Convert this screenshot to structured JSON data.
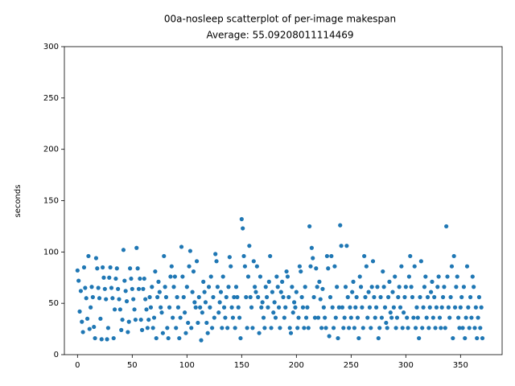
{
  "chart_data": {
    "type": "scatter",
    "title": "00a-nosleep scatterplot of per-image makespan",
    "subtitle": "Average: 55.09208011114469",
    "ylabel": "seconds",
    "xlim": [
      -12,
      388
    ],
    "ylim": [
      0,
      300
    ],
    "xticks": [
      0,
      50,
      100,
      150,
      200,
      250,
      300,
      350
    ],
    "yticks": [
      0,
      50,
      100,
      150,
      200,
      250,
      300
    ],
    "series": [
      {
        "color": "#1f77b4",
        "x": [
          0,
          1,
          2,
          3,
          4,
          5,
          6,
          7,
          8,
          9,
          10,
          11,
          12,
          13,
          14,
          15,
          16,
          17,
          18,
          19,
          20,
          21,
          22,
          23,
          24,
          25,
          26,
          27,
          28,
          29,
          30,
          31,
          32,
          33,
          34,
          35,
          36,
          37,
          38,
          39,
          40,
          41,
          42,
          43,
          44,
          45,
          46,
          47,
          48,
          49,
          50,
          51,
          52,
          53,
          54,
          55,
          56,
          57,
          58,
          59,
          60,
          61,
          62,
          63,
          64,
          65,
          66,
          67,
          68,
          69,
          70,
          71,
          72,
          73,
          74,
          75,
          76,
          77,
          78,
          79,
          80,
          81,
          82,
          83,
          84,
          85,
          86,
          87,
          88,
          89,
          90,
          91,
          92,
          93,
          94,
          95,
          96,
          97,
          98,
          99,
          100,
          101,
          102,
          103,
          104,
          105,
          106,
          107,
          108,
          109,
          110,
          111,
          112,
          113,
          114,
          115,
          116,
          117,
          118,
          119,
          120,
          121,
          122,
          123,
          124,
          125,
          126,
          127,
          128,
          129,
          130,
          131,
          132,
          133,
          134,
          135,
          136,
          137,
          138,
          139,
          140,
          141,
          142,
          143,
          144,
          145,
          146,
          147,
          148,
          149,
          150,
          151,
          152,
          153,
          154,
          155,
          156,
          157,
          158,
          159,
          160,
          161,
          162,
          163,
          164,
          165,
          166,
          167,
          168,
          169,
          170,
          171,
          172,
          173,
          174,
          175,
          176,
          177,
          178,
          179,
          180,
          181,
          182,
          183,
          184,
          185,
          186,
          187,
          188,
          189,
          190,
          191,
          192,
          193,
          194,
          195,
          196,
          197,
          198,
          199,
          200,
          201,
          202,
          203,
          204,
          205,
          206,
          207,
          208,
          209,
          210,
          211,
          212,
          213,
          214,
          215,
          216,
          217,
          218,
          219,
          220,
          221,
          222,
          223,
          224,
          225,
          226,
          227,
          228,
          229,
          230,
          231,
          232,
          233,
          234,
          235,
          236,
          237,
          238,
          239,
          240,
          241,
          242,
          243,
          244,
          245,
          246,
          247,
          248,
          249,
          250,
          251,
          252,
          253,
          254,
          255,
          256,
          257,
          258,
          259,
          260,
          261,
          262,
          263,
          264,
          265,
          266,
          267,
          268,
          269,
          270,
          271,
          272,
          273,
          274,
          275,
          276,
          277,
          278,
          279,
          280,
          281,
          282,
          283,
          284,
          285,
          286,
          287,
          288,
          289,
          290,
          291,
          292,
          293,
          294,
          295,
          296,
          297,
          298,
          299,
          300,
          301,
          302,
          303,
          304,
          305,
          306,
          307,
          308,
          309,
          310,
          311,
          312,
          313,
          314,
          315,
          316,
          317,
          318,
          319,
          320,
          321,
          322,
          323,
          324,
          325,
          326,
          327,
          328,
          329,
          330,
          331,
          332,
          333,
          334,
          335,
          336,
          337,
          338,
          339,
          340,
          341,
          342,
          343,
          344,
          345,
          346,
          347,
          348,
          349,
          350,
          351,
          352,
          353,
          354,
          355,
          356,
          357,
          358,
          359,
          360,
          361,
          362,
          363,
          364,
          365,
          366,
          367,
          368,
          369,
          370
        ],
        "values": [
          82,
          72,
          42,
          62,
          32,
          22,
          85,
          65,
          55,
          35,
          96,
          25,
          46,
          66,
          56,
          27,
          16,
          94,
          84,
          65,
          55,
          35,
          15,
          85,
          75,
          64,
          54,
          15,
          26,
          75,
          85,
          65,
          55,
          16,
          44,
          74,
          84,
          64,
          54,
          44,
          24,
          34,
          102,
          72,
          62,
          52,
          22,
          32,
          84,
          74,
          64,
          54,
          44,
          34,
          104,
          84,
          64,
          74,
          34,
          24,
          64,
          74,
          54,
          44,
          26,
          34,
          56,
          46,
          66,
          26,
          36,
          81,
          16,
          56,
          71,
          61,
          46,
          41,
          21,
          96,
          66,
          56,
          26,
          16,
          46,
          76,
          86,
          36,
          66,
          76,
          26,
          56,
          46,
          16,
          36,
          105,
          76,
          56,
          41,
          21,
          66,
          31,
          86,
          101,
          26,
          61,
          81,
          51,
          46,
          91,
          31,
          56,
          46,
          14,
          41,
          71,
          61,
          51,
          31,
          21,
          66,
          46,
          76,
          26,
          56,
          36,
          98,
          91,
          66,
          41,
          51,
          61,
          26,
          76,
          46,
          36,
          56,
          26,
          66,
          95,
          86,
          46,
          36,
          56,
          26,
          66,
          56,
          46,
          36,
          16,
          132,
          123,
          96,
          86,
          56,
          26,
          76,
          106,
          56,
          46,
          26,
          91,
          66,
          61,
          86,
          56,
          21,
          76,
          46,
          51,
          36,
          26,
          66,
          56,
          46,
          71,
          96,
          26,
          61,
          41,
          51,
          36,
          76,
          66,
          46,
          26,
          61,
          71,
          56,
          36,
          46,
          81,
          76,
          56,
          26,
          21,
          66,
          41,
          51,
          46,
          61,
          26,
          36,
          86,
          81,
          56,
          46,
          26,
          66,
          36,
          46,
          26,
          125,
          86,
          104,
          94,
          56,
          36,
          84,
          66,
          36,
          71,
          54,
          26,
          64,
          46,
          36,
          26,
          96,
          84,
          18,
          56,
          96,
          46,
          26,
          86,
          36,
          66,
          16,
          46,
          126,
          106,
          46,
          26,
          36,
          66,
          106,
          56,
          26,
          46,
          36,
          61,
          71,
          26,
          46,
          56,
          36,
          16,
          76,
          66,
          46,
          26,
          96,
          56,
          86,
          36,
          61,
          46,
          26,
          66,
          91,
          56,
          36,
          46,
          66,
          16,
          26,
          56,
          36,
          81,
          66,
          46,
          31,
          26,
          56,
          71,
          41,
          36,
          61,
          46,
          76,
          26,
          36,
          56,
          66,
          46,
          86,
          26,
          41,
          56,
          66,
          36,
          26,
          76,
          96,
          66,
          56,
          36,
          86,
          26,
          46,
          36,
          16,
          56,
          91,
          26,
          46,
          66,
          76,
          36,
          56,
          26,
          46,
          61,
          71,
          36,
          56,
          26,
          46,
          66,
          76,
          36,
          26,
          46,
          56,
          66,
          26,
          125,
          76,
          46,
          36,
          56,
          86,
          16,
          96,
          46,
          66,
          76,
          36,
          26,
          46,
          56,
          26,
          66,
          16,
          36,
          86,
          46,
          26,
          56,
          36,
          76,
          66,
          26,
          46,
          16,
          36,
          56,
          26,
          46,
          16
        ]
      }
    ]
  }
}
